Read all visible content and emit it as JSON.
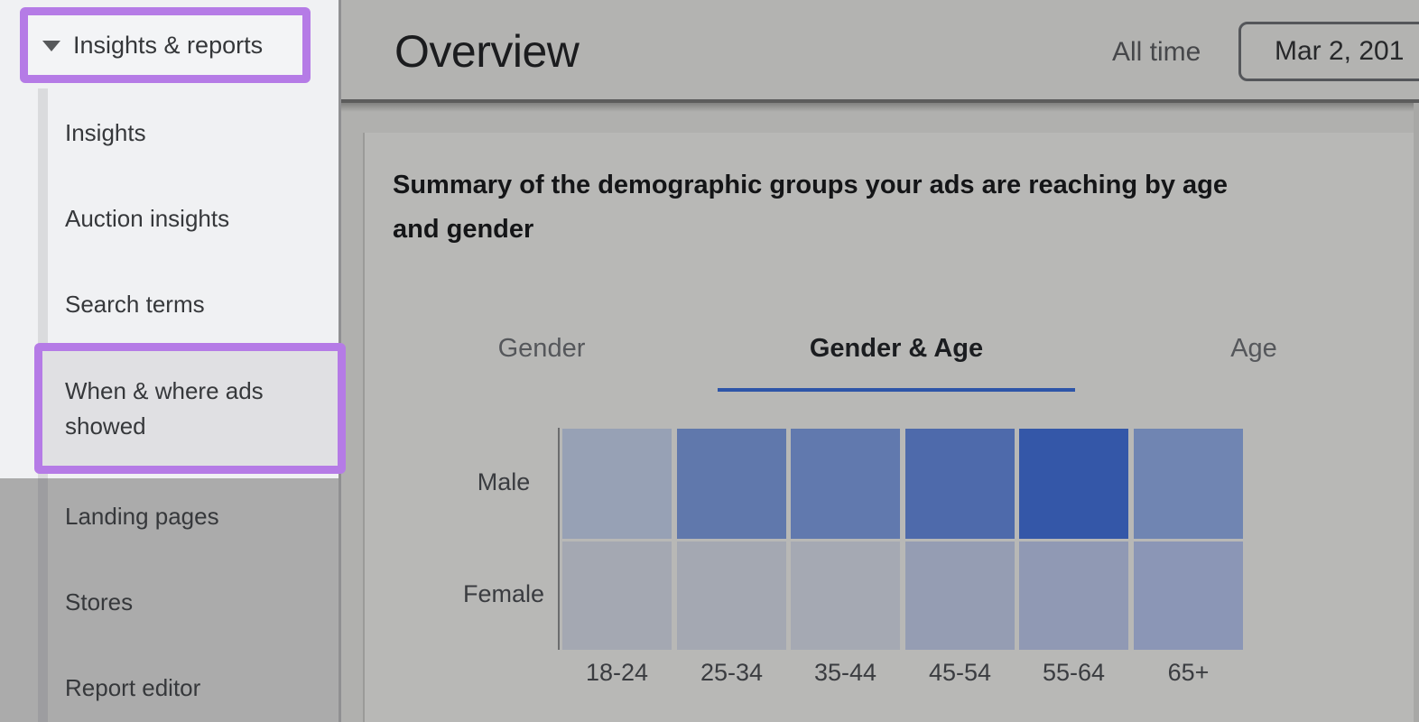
{
  "sidebar": {
    "header": {
      "label": "Insights & reports",
      "collapse_icon": "triangle-down"
    },
    "items": [
      {
        "label": "Insights",
        "selected": false,
        "dimmed": false
      },
      {
        "label": "Auction insights",
        "selected": false,
        "dimmed": false
      },
      {
        "label": "Search terms",
        "selected": false,
        "dimmed": false
      },
      {
        "label": "When & where ads showed",
        "selected": true,
        "dimmed": false
      },
      {
        "label": "Landing pages",
        "selected": false,
        "dimmed": true
      },
      {
        "label": "Stores",
        "selected": false,
        "dimmed": true
      },
      {
        "label": "Report editor",
        "selected": false,
        "dimmed": true
      }
    ],
    "highlight_color": "#b57be6"
  },
  "header": {
    "title": "Overview",
    "date_range_label": "All time",
    "date_button_text": "Mar 2, 201"
  },
  "card": {
    "summary_line1": "Summary of the demographic groups your ads are reaching by age",
    "summary_line2": "and gender",
    "tabs": [
      {
        "label": "Gender",
        "selected": false
      },
      {
        "label": "Gender & Age",
        "selected": true
      },
      {
        "label": "Age",
        "selected": false
      }
    ],
    "tab_underline_color": "#2d55a8"
  },
  "chart_data": {
    "type": "heatmap",
    "title": "Summary of the demographic groups your ads are reaching by age and gender",
    "x_categories": [
      "18-24",
      "25-34",
      "35-44",
      "45-54",
      "55-64",
      "65+"
    ],
    "y_categories": [
      "Male",
      "Female"
    ],
    "cell_colors": [
      [
        "#97a1b5",
        "#6078ac",
        "#6179ae",
        "#4e6aab",
        "#3457a8",
        "#7085b2"
      ],
      [
        "#a4a8b2",
        "#a4a8b2",
        "#a5a9b3",
        "#959db3",
        "#9099b4",
        "#8b96b6"
      ]
    ],
    "relative_intensity": [
      [
        0.25,
        0.6,
        0.6,
        0.7,
        0.95,
        0.45
      ],
      [
        0.08,
        0.08,
        0.08,
        0.2,
        0.25,
        0.3
      ]
    ],
    "legend": "none",
    "note": "no numeric labels shown; darker blue indicates greater ad reach"
  }
}
